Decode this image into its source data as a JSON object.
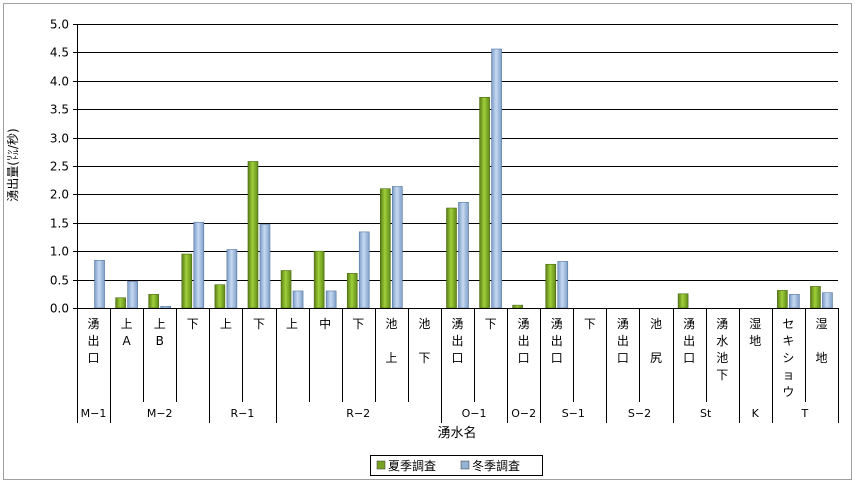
{
  "chart_data": {
    "type": "bar",
    "ylabel": "湧出量(㍑/秒)",
    "xlabel": "湧水名",
    "ylim": [
      0,
      5
    ],
    "y_ticks": [
      "0.0",
      "0.5",
      "1.0",
      "1.5",
      "2.0",
      "2.5",
      "3.0",
      "3.5",
      "4.0",
      "4.5",
      "5.0"
    ],
    "grid": true,
    "legend_position": "bottom",
    "categories": [
      "湧\n出\n口",
      "上\nA",
      "上\nB",
      "下",
      "上",
      "下",
      "上",
      "中",
      "下",
      "池\n\n上",
      "池\n\n下",
      "湧\n出\n口",
      "下",
      "湧\n出\n口",
      "湧\n出\n口",
      "下",
      "湧\n出\n口",
      "池\n\n尻",
      "湧\n出\n口",
      "湧\n水\n池\n下",
      "湿\n地",
      "セ\nキ\nシ\nョ\nウ",
      "湿\n\n地"
    ],
    "groups": [
      {
        "label": "M−1",
        "count": 1
      },
      {
        "label": "M−2",
        "count": 3
      },
      {
        "label": "R−1",
        "count": 2
      },
      {
        "label": "R−2",
        "count": 5
      },
      {
        "label": "O−1",
        "count": 2
      },
      {
        "label": "O−2",
        "count": 1
      },
      {
        "label": "S−1",
        "count": 2
      },
      {
        "label": "S−2",
        "count": 2
      },
      {
        "label": "St",
        "count": 2
      },
      {
        "label": "K",
        "count": 1
      },
      {
        "label": "T",
        "count": 2
      }
    ],
    "series": [
      {
        "name": "夏季調査",
        "color": "#77a224",
        "values": [
          0,
          0.18,
          0.24,
          0.95,
          0.41,
          2.58,
          0.66,
          1.0,
          0.61,
          2.1,
          0,
          1.76,
          3.71,
          0.05,
          0.77,
          0,
          0,
          0,
          0.25,
          0,
          0,
          0.31,
          0.38
        ]
      },
      {
        "name": "冬季調査",
        "color": "#95b3d7",
        "values": [
          0.84,
          0.47,
          0.03,
          1.51,
          1.03,
          1.47,
          0.3,
          0.3,
          1.34,
          2.14,
          0,
          1.86,
          4.56,
          0,
          0.82,
          0,
          0,
          0,
          0,
          0,
          0,
          0.24,
          0.27
        ]
      }
    ]
  }
}
